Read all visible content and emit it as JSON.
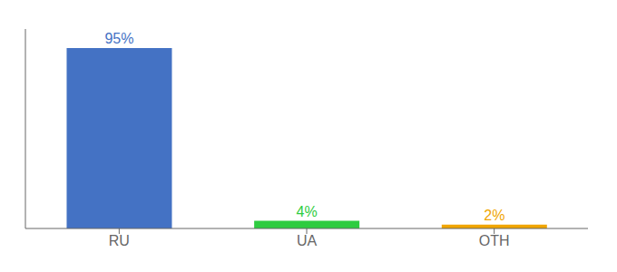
{
  "chart_data": {
    "type": "bar",
    "categories": [
      "RU",
      "UA",
      "OTH"
    ],
    "values": [
      95,
      4,
      2
    ],
    "value_labels": [
      "95%",
      "4%",
      "2%"
    ],
    "data_labels": true,
    "colors": [
      "#4472c4",
      "#2ecc40",
      "#f0a500"
    ],
    "ylim": [
      0,
      105
    ],
    "tick_labels": "x"
  }
}
